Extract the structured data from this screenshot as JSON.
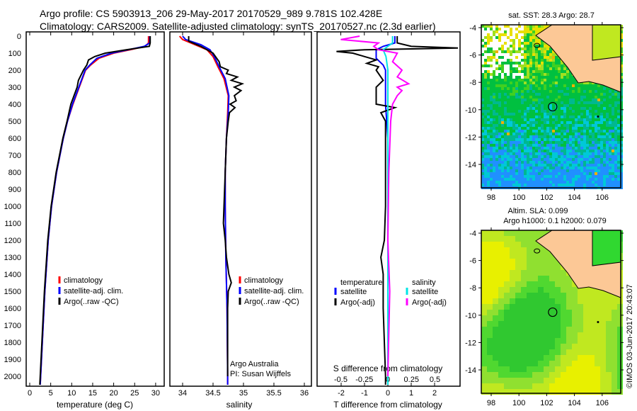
{
  "title_line1": "Argo profile: CS 5903913_206 29-May-2017 20170529_989 9.781S 102.428E",
  "title_line2": "Climatology: CARS2009. Satellite-adjusted climatology: synTS_20170527.nc (2.3d earlier)",
  "footer": "©IMOS 03-Jun-2017 20:43:07",
  "colors": {
    "climatology": "#ff0000",
    "satellite": "#0000ff",
    "argo": "#000000",
    "s_satellite": "#00e5e5",
    "s_argo": "#ff00ff",
    "land": "#fcc896"
  },
  "chart_data": [
    {
      "type": "line",
      "title": "",
      "xlabel": "temperature (deg C)",
      "ylabel": "",
      "xlim": [
        -2,
        31
      ],
      "ylim": [
        2050,
        0
      ],
      "xticks": [
        "0",
        "5",
        "10",
        "15",
        "20",
        "25",
        "30"
      ],
      "yticks": [
        "0",
        "100",
        "200",
        "300",
        "400",
        "500",
        "600",
        "700",
        "800",
        "900",
        "1000",
        "1100",
        "1200",
        "1300",
        "1400",
        "1500",
        "1600",
        "1700",
        "1800",
        "1900",
        "2000"
      ],
      "legend": [
        "climatology",
        "satellite-adj. clim.",
        "Argo(..raw -QC)"
      ],
      "series": [
        {
          "name": "climatology",
          "depth": [
            0,
            40,
            60,
            80,
            100,
            130,
            170,
            200,
            300,
            400,
            500,
            600,
            800,
            1000,
            1200,
            1500,
            1800,
            2000,
            2050
          ],
          "values": [
            28.3,
            28.3,
            27.5,
            24,
            20,
            16.5,
            14.5,
            13.3,
            11.8,
            10.3,
            9,
            8,
            6.4,
            5.2,
            4.4,
            3.6,
            3,
            2.6,
            2.5
          ]
        },
        {
          "name": "satellite-adj. clim.",
          "depth": [
            0,
            40,
            60,
            80,
            100,
            130,
            170,
            200,
            300,
            400,
            500,
            600,
            800,
            1000,
            1200,
            1500,
            1800,
            2000,
            2050
          ],
          "values": [
            28.6,
            28.6,
            27.3,
            23.5,
            19.5,
            16,
            14.3,
            13.2,
            11.7,
            10.2,
            9,
            8,
            6.4,
            5.2,
            4.4,
            3.6,
            3,
            2.6,
            2.5
          ]
        },
        {
          "name": "Argo(..raw -QC)",
          "depth": [
            0,
            40,
            60,
            80,
            100,
            120,
            140,
            170,
            200,
            260,
            300,
            400,
            500,
            600,
            800,
            1000,
            1200,
            1500,
            1800,
            2000,
            2050
          ],
          "values": [
            28.7,
            28.7,
            28.5,
            23,
            18,
            15.5,
            14,
            13.6,
            12.8,
            11.6,
            11.3,
            9.8,
            8.9,
            7.9,
            6.3,
            5.1,
            4.3,
            3.5,
            2.9,
            2.5,
            2.4
          ]
        }
      ]
    },
    {
      "type": "line",
      "xlabel": "salinity",
      "xlim": [
        33.8,
        36.1
      ],
      "ylim": [
        2050,
        0
      ],
      "xticks": [
        "34",
        "34.5",
        "35",
        "35.5",
        "36"
      ],
      "legend": [
        "climatology",
        "satellite-adj. clim.",
        "Argo(..raw -QC)"
      ],
      "annotation": [
        "Argo Australia",
        "PI: Susan Wijffels"
      ],
      "series": [
        {
          "name": "climatology",
          "depth": [
            0,
            20,
            50,
            80,
            120,
            180,
            250,
            350,
            450,
            600,
            800,
            1000,
            1300,
            1600,
            2000,
            2050
          ],
          "values": [
            33.95,
            34.0,
            34.2,
            34.4,
            34.5,
            34.58,
            34.68,
            34.75,
            34.74,
            34.72,
            34.7,
            34.7,
            34.71,
            34.73,
            34.74,
            34.74
          ]
        },
        {
          "name": "satellite-adj. clim.",
          "depth": [
            0,
            20,
            50,
            80,
            120,
            180,
            250,
            350,
            450,
            600,
            800,
            1000,
            1300,
            1600,
            2000,
            2050
          ],
          "values": [
            34.0,
            34.05,
            34.3,
            34.45,
            34.52,
            34.6,
            34.7,
            34.76,
            34.75,
            34.72,
            34.7,
            34.7,
            34.71,
            34.73,
            34.74,
            34.74
          ]
        },
        {
          "name": "Argo(..raw -QC)",
          "depth": [
            0,
            30,
            60,
            100,
            150,
            180,
            200,
            220,
            240,
            260,
            280,
            300,
            320,
            350,
            380,
            400,
            420,
            450,
            500,
            600,
            800,
            1000,
            1100,
            1200,
            1300,
            1400,
            1450,
            1500,
            1600,
            2000
          ],
          "values": [
            34.1,
            34.1,
            34.3,
            34.5,
            34.6,
            34.62,
            34.75,
            34.72,
            34.9,
            34.8,
            34.98,
            34.85,
            34.96,
            34.85,
            34.88,
            34.78,
            34.86,
            34.77,
            34.75,
            34.72,
            34.7,
            34.68,
            34.67,
            34.7,
            34.72,
            34.76,
            34.8,
            34.75,
            34.74,
            34.74
          ]
        }
      ]
    },
    {
      "type": "line",
      "xlabel": "T difference from climatology",
      "x2label": "S difference from climatology",
      "xlim": [
        -3,
        3.1
      ],
      "ylim": [
        2050,
        0
      ],
      "xticks": [
        "-2",
        "-1",
        "0",
        "1",
        "2"
      ],
      "x2ticks": [
        "-0.5",
        "-0.25",
        "0",
        "0.25",
        "0.5"
      ],
      "legend_headers": [
        "temperature",
        "salinity"
      ],
      "legend": [
        "satellite",
        "Argo(-adj)",
        "satellite",
        "Argo(-adj)"
      ],
      "series": [
        {
          "name": "T satellite",
          "depth": [
            0,
            40,
            60,
            80,
            100,
            130,
            170,
            200,
            300,
            400,
            600,
            1000,
            1500,
            2050
          ],
          "values": [
            0.3,
            0.3,
            -0.2,
            -0.5,
            -0.5,
            -0.5,
            -0.2,
            -0.1,
            -0.1,
            -0.1,
            0,
            0,
            0,
            0
          ]
        },
        {
          "name": "T Argo(-adj)",
          "depth": [
            0,
            40,
            60,
            70,
            80,
            90,
            100,
            120,
            140,
            160,
            180,
            200,
            260,
            300,
            400,
            420,
            450,
            500,
            600,
            800,
            1000,
            1200,
            1300,
            1400,
            1600,
            2000,
            2050
          ],
          "values": [
            0.4,
            0.4,
            1,
            3,
            -1,
            -2.2,
            -1.5,
            -1,
            -0.5,
            -0.9,
            -0.4,
            -0.5,
            -0.2,
            -0.5,
            -0.5,
            0.3,
            -0.3,
            -0.1,
            -0.1,
            -0.1,
            -0.1,
            -0.15,
            -0.3,
            -0.2,
            -0.2,
            -0.1,
            -0.1
          ]
        },
        {
          "name": "S satellite",
          "depth": [
            0,
            40,
            80,
            120,
            200,
            300,
            500,
            1000,
            2050
          ],
          "values": [
            0.05,
            0.05,
            -0.05,
            -0.02,
            0,
            0,
            0,
            0,
            0
          ]
        },
        {
          "name": "S Argo(-adj)",
          "depth": [
            0,
            20,
            40,
            60,
            80,
            100,
            150,
            200,
            240,
            280,
            300,
            320,
            350,
            400,
            500,
            800,
            1200,
            1500,
            2000
          ],
          "values": [
            -0.3,
            -0.5,
            -0.1,
            -0.15,
            -0.1,
            0.1,
            0.05,
            0.15,
            0.1,
            0.22,
            0.1,
            0.15,
            0.1,
            0.05,
            0.03,
            0.01,
            0,
            0.02,
            0
          ]
        }
      ]
    },
    {
      "type": "heatmap",
      "title": "sat. SST: 28.3 Argo: 28.7",
      "xticks": [
        "98",
        "100",
        "102",
        "104",
        "106"
      ],
      "yticks": [
        "-4",
        "-6",
        "-8",
        "-10",
        "-12",
        "-14"
      ],
      "xlim": [
        97.3,
        107.6
      ],
      "ylim": [
        -15.8,
        -3.7
      ],
      "marker": [
        102.43,
        -9.78
      ]
    },
    {
      "type": "heatmap",
      "title": "Altim. SLA: 0.099",
      "subtitle": "Argo h1000: 0.1 h2000: 0.079",
      "xticks": [
        "98",
        "100",
        "102",
        "104",
        "106"
      ],
      "yticks": [
        "-4",
        "-6",
        "-8",
        "-10",
        "-12",
        "-14"
      ],
      "xlim": [
        97.3,
        107.6
      ],
      "ylim": [
        -15.8,
        -3.7
      ],
      "marker": [
        102.43,
        -9.78
      ]
    }
  ]
}
